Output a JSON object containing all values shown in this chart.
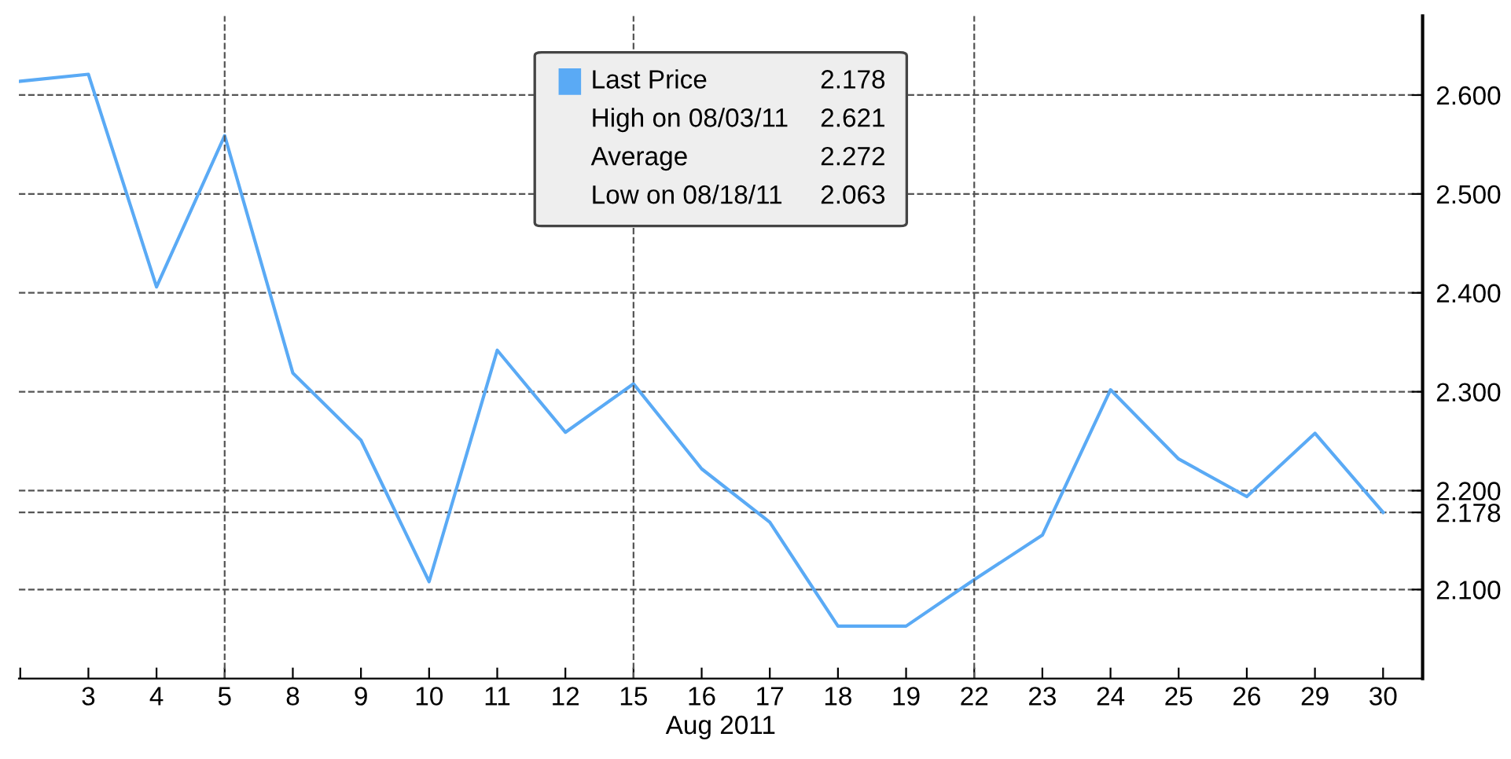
{
  "chart_data": {
    "type": "line",
    "xlabel": "Aug 2011",
    "categories": [
      null,
      "3",
      "4",
      "5",
      "8",
      "9",
      "10",
      "11",
      "12",
      "15",
      "16",
      "17",
      "18",
      "19",
      "22",
      "23",
      "24",
      "25",
      "26",
      "29",
      "30"
    ],
    "series": [
      {
        "name": "Last Price",
        "color": "#5aaaf5",
        "values": [
          2.614,
          2.621,
          2.406,
          2.559,
          2.319,
          2.251,
          2.108,
          2.342,
          2.259,
          2.308,
          2.222,
          2.168,
          2.063,
          2.063,
          2.11,
          2.155,
          2.302,
          2.232,
          2.194,
          2.258,
          2.178
        ]
      }
    ],
    "ylim": [
      2.01,
      2.68
    ],
    "yticks": [
      {
        "value": 2.1,
        "label": "2.100"
      },
      {
        "value": 2.178,
        "label": "2.178"
      },
      {
        "value": 2.2,
        "label": "2.200"
      },
      {
        "value": 2.3,
        "label": "2.300"
      },
      {
        "value": 2.4,
        "label": "2.400"
      },
      {
        "value": 2.5,
        "label": "2.500"
      },
      {
        "value": 2.6,
        "label": "2.600"
      }
    ],
    "grid": "y",
    "legend": "top",
    "marker": "none",
    "line_style": "solid",
    "ref_lines": [
      {
        "axis": "x",
        "value": "5",
        "color": "#555555",
        "line_style": "dashed"
      },
      {
        "axis": "x",
        "value": "15",
        "color": "#555555",
        "line_style": "dashed"
      },
      {
        "axis": "x",
        "value": "22",
        "color": "#555555",
        "line_style": "dashed"
      }
    ],
    "annotations": [
      "2.178",
      "High on 08/03/11",
      "2.621",
      "Average",
      "2.272",
      "Low on 08/18/11",
      "2.063"
    ]
  }
}
